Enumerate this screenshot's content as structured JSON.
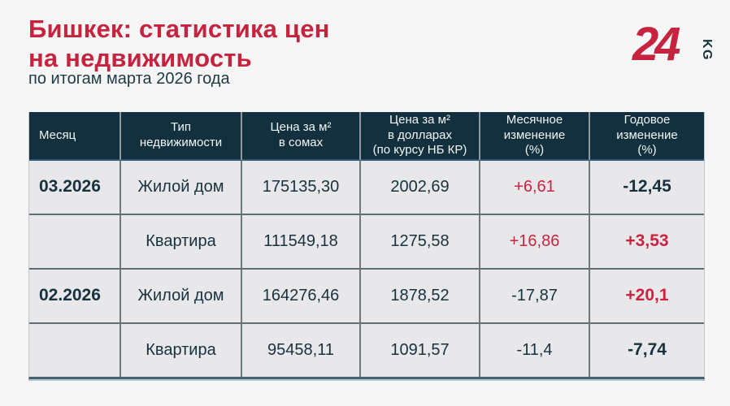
{
  "header": {
    "title": "Бишкек: статистика цен\nна недвижимость",
    "subtitle": "по итогам марта 2026 года"
  },
  "logo": {
    "number": "24",
    "suffix": "KG"
  },
  "colors": {
    "accent_red": "#C9233F",
    "dark_teal": "#12303D",
    "cell_background": "#E8E8EA",
    "page_background": "#F6F6F7"
  },
  "table": {
    "headers": [
      "Месяц",
      "Тип\nнедвижимости",
      "Цена за м²\nв сомах",
      "Цена за м²\nв долларах\n(по курсу НБ КР)",
      "Месячное\nизменение\n(%)",
      "Годовое\nизменение\n(%)"
    ],
    "rows": [
      {
        "month": "03.2026",
        "property_type": "Жилой дом",
        "price_som": "175135,30",
        "price_usd": "2002,69",
        "monthly_change": {
          "value": "+6,61",
          "trend": "up"
        },
        "annual_change": {
          "value": "-12,45",
          "trend": "down"
        }
      },
      {
        "month": "",
        "property_type": "Квартира",
        "price_som": "111549,18",
        "price_usd": "1275,58",
        "monthly_change": {
          "value": "+16,86",
          "trend": "up"
        },
        "annual_change": {
          "value": "+3,53",
          "trend": "up"
        }
      },
      {
        "month": "02.2026",
        "property_type": "Жилой дом",
        "price_som": "164276,46",
        "price_usd": "1878,52",
        "monthly_change": {
          "value": "-17,87",
          "trend": "down"
        },
        "annual_change": {
          "value": "+20,1",
          "trend": "up"
        }
      },
      {
        "month": "",
        "property_type": "Квартира",
        "price_som": "95458,11",
        "price_usd": "1091,57",
        "monthly_change": {
          "value": "-11,4",
          "trend": "down"
        },
        "annual_change": {
          "value": "-7,74",
          "trend": "down"
        }
      }
    ]
  },
  "chart_data": {
    "type": "table",
    "title": "Бишкек: статистика цен на недвижимость",
    "subtitle": "по итогам марта 2026 года",
    "columns": [
      "Месяц",
      "Тип недвижимости",
      "Цена за м² в сомах",
      "Цена за м² в долларах (по курсу НБ КР)",
      "Месячное изменение (%)",
      "Годовое изменение (%)"
    ],
    "rows": [
      [
        "03.2026",
        "Жилой дом",
        "175135,30",
        "2002,69",
        "+6,61",
        "-12,45"
      ],
      [
        "",
        "Квартира",
        "111549,18",
        "1275,58",
        "+16,86",
        "+3,53"
      ],
      [
        "02.2026",
        "Жилой дом",
        "164276,46",
        "1878,52",
        "-17,87",
        "+20,1"
      ],
      [
        "",
        "Квартира",
        "95458,11",
        "1091,57",
        "-11,4",
        "-7,74"
      ]
    ]
  }
}
